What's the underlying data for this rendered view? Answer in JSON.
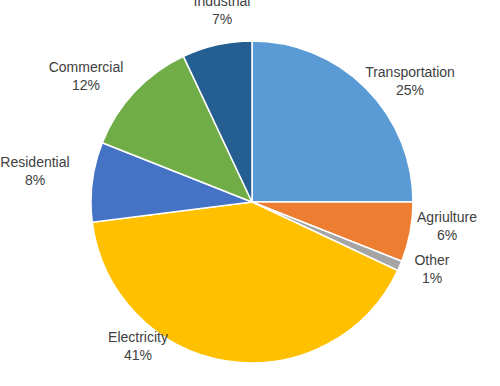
{
  "chart_data": {
    "type": "pie",
    "categories": [
      "Transportation",
      "Agriulture",
      "Other",
      "Electricity",
      "Residential",
      "Commercial",
      "Industrial"
    ],
    "values": [
      25,
      6,
      1,
      41,
      8,
      12,
      7
    ],
    "value_labels": [
      "25%",
      "6%",
      "1%",
      "41%",
      "8%",
      "12%",
      "7%"
    ],
    "colors": [
      "#5b9bd5",
      "#ed7d31",
      "#a5a5a5",
      "#ffc000",
      "#4472c4",
      "#70ad47",
      "#255e91"
    ],
    "data_labels": true
  }
}
